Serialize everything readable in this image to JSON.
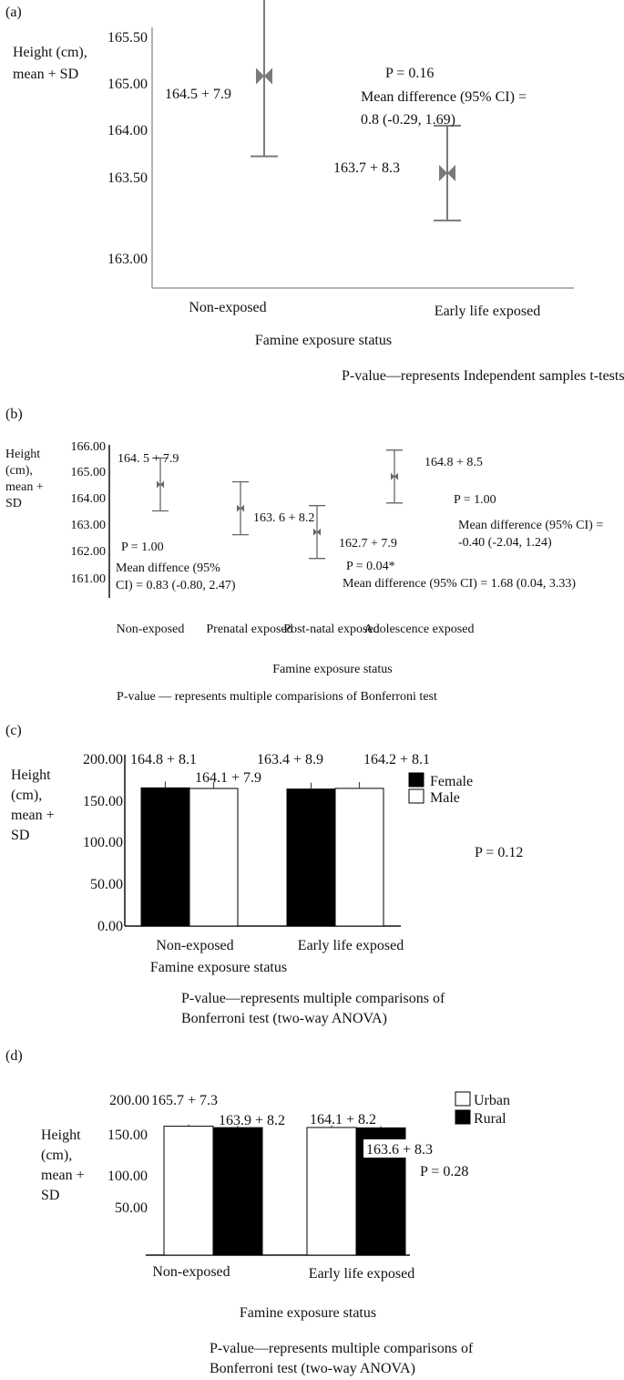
{
  "panels": [
    {
      "id": "a",
      "panel_label": "(a)",
      "ylabel_lines": [
        "Height (cm),",
        "mean + SD"
      ],
      "xlabel": "Famine exposure status",
      "note_lines": [
        "P-value—represents Independent samples t-tests"
      ],
      "stats_lines": [
        "P = 0.16",
        "Mean difference (95% CI) =",
        "0.8 (-0.29, 1.69)"
      ]
    },
    {
      "id": "b",
      "panel_label": "(b)",
      "ylabel_lines": [
        "Height",
        "(cm),",
        "mean +",
        "SD"
      ],
      "xlabel": "Famine exposure status",
      "note_lines": [
        "P-value — represents multiple comparisions of Bonferroni test"
      ],
      "stats_lines": [
        "P = 1.00",
        "Mean diffence (95%",
        "CI) = 0.83 (-0.80, 2.47)",
        "P = 0.04*",
        "Mean difference (95% CI) = 1.68 (0.04, 3.33)",
        "P = 1.00",
        "Mean difference (95% CI) =",
        "-0.40 (-2.04, 1.24)"
      ]
    },
    {
      "id": "c",
      "panel_label": "(c)",
      "ylabel_lines": [
        "Height",
        "(cm),",
        "mean +",
        "SD"
      ],
      "xlabel": "Famine exposure status",
      "note_lines": [
        "P-value—represents multiple comparisons of",
        "Bonferroni test (two-way ANOVA)"
      ],
      "stats_lines": [
        "P = 0.12"
      ]
    },
    {
      "id": "d",
      "panel_label": "(d)",
      "ylabel_lines": [
        "Height",
        "(cm),",
        "mean +",
        "SD"
      ],
      "xlabel": "Famine exposure status",
      "note_lines": [
        "P-value—represents multiple comparisons of",
        "Bonferroni test (two-way ANOVA)"
      ],
      "stats_lines": [
        "P = 0.28"
      ]
    }
  ],
  "chart_data": [
    {
      "type": "scatter",
      "panel": "a",
      "categories": [
        "Non-exposed",
        "Early life exposed"
      ],
      "series": [
        {
          "values": [
            164.5,
            163.7
          ],
          "error_sd": [
            7.9,
            8.3
          ]
        }
      ],
      "value_labels": [
        "164.5 + 7.9",
        "163.7 + 8.3"
      ],
      "y_ticks": [
        "165.50",
        "165.00",
        "164.00",
        "163.50",
        "163.00"
      ],
      "title": "",
      "xlabel": "Famine exposure status",
      "ylabel": "Height (cm), mean + SD"
    },
    {
      "type": "scatter",
      "panel": "b",
      "categories": [
        "Non-exposed",
        "Prenatal exposed",
        "Post-natal exposed",
        "Adolescence exposed"
      ],
      "series": [
        {
          "values": [
            164.5,
            163.6,
            162.7,
            164.8
          ],
          "error_sd": [
            7.9,
            8.2,
            7.9,
            8.5
          ]
        }
      ],
      "value_labels": [
        "164. 5 + 7.9",
        "163. 6 + 8.2",
        "162.7 + 7.9",
        "164.8 + 8.5"
      ],
      "y_ticks": [
        "166.00",
        "165.00",
        "164.00",
        "163.00",
        "162.00",
        "161.00"
      ],
      "title": "",
      "xlabel": "Famine exposure status",
      "ylabel": "Height (cm), mean + SD"
    },
    {
      "type": "bar",
      "panel": "c",
      "categories": [
        "Non-exposed",
        "Early life exposed"
      ],
      "series": [
        {
          "name": "Female",
          "values": [
            164.8,
            163.4
          ],
          "error_sd": [
            8.1,
            8.9
          ],
          "color": "#000000"
        },
        {
          "name": "Male",
          "values": [
            164.1,
            164.2
          ],
          "error_sd": [
            7.9,
            8.1
          ],
          "color": "#ffffff"
        }
      ],
      "value_labels": [
        [
          "164.8 + 8.1",
          "163.4 + 8.9"
        ],
        [
          "164.1 + 7.9",
          "164.2 + 8.1"
        ]
      ],
      "y_ticks": [
        "200.00",
        "150.00",
        "100.00",
        "50.00",
        "0.00"
      ],
      "ylim": [
        0,
        200
      ],
      "legend": "top-right",
      "title": "",
      "xlabel": "Famine exposure status",
      "ylabel": "Height (cm), mean + SD"
    },
    {
      "type": "bar",
      "panel": "d",
      "categories": [
        "Non-exposed",
        "Early life exposed"
      ],
      "series": [
        {
          "name": "Urban",
          "values": [
            165.7,
            164.1
          ],
          "error_sd": [
            7.3,
            8.2
          ],
          "color": "#ffffff"
        },
        {
          "name": "Rural",
          "values": [
            163.9,
            163.6
          ],
          "error_sd": [
            8.2,
            8.3
          ],
          "color": "#000000"
        }
      ],
      "value_labels": [
        [
          "165.7 + 7.3",
          "164.1 + 8.2"
        ],
        [
          "163.9 + 8.2",
          "163.6 + 8.3"
        ]
      ],
      "y_ticks": [
        "200.00",
        "150.00",
        "100.00",
        "50.00"
      ],
      "ylim": [
        0,
        200
      ],
      "legend": "top-right",
      "title": "",
      "xlabel": "Famine exposure status",
      "ylabel": "Height (cm), mean + SD"
    }
  ]
}
